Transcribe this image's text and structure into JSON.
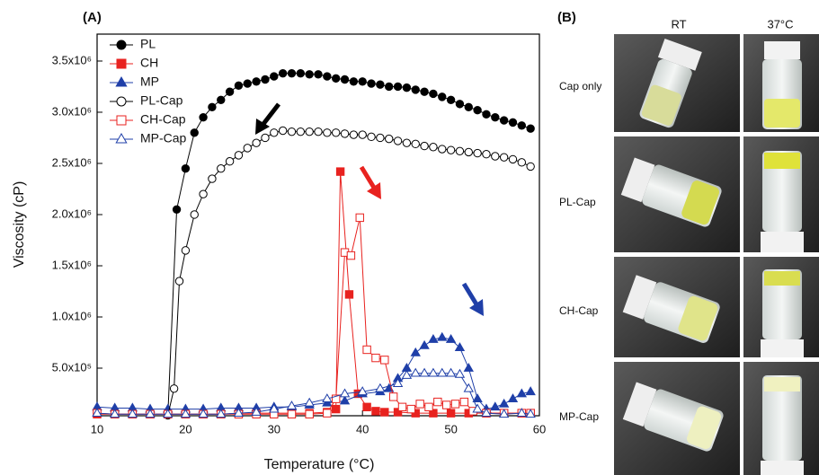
{
  "chart_data": {
    "type": "line",
    "panel_label": "(A)",
    "x_label": "Temperature (°C)",
    "y_label": "Viscosity (cP)",
    "xlim": [
      10,
      60
    ],
    "xticks": [
      10,
      20,
      30,
      40,
      50,
      60
    ],
    "ylim": [
      35000,
      3763000
    ],
    "yticks": [
      {
        "value": 500000,
        "label": "5.0x10⁵"
      },
      {
        "value": 1000000,
        "label": "1.0x10⁶"
      },
      {
        "value": 1500000,
        "label": "1.5x10⁶"
      },
      {
        "value": 2000000,
        "label": "2.0x10⁶"
      },
      {
        "value": 2500000,
        "label": "2.5x10⁶"
      },
      {
        "value": 3000000,
        "label": "3.0x10⁶"
      },
      {
        "value": 3500000,
        "label": "3.5x10⁶"
      }
    ],
    "legend": "upper left",
    "series": [
      {
        "name": "PL",
        "color": "#000000",
        "marker": "circle",
        "filled": true,
        "x": [
          18,
          19,
          20,
          21,
          22,
          23,
          24,
          25,
          26,
          27,
          28,
          29,
          30,
          31,
          32,
          33,
          34,
          35,
          36,
          37,
          38,
          39,
          40,
          41,
          42,
          43,
          44,
          45,
          46,
          47,
          48,
          49,
          50,
          51,
          52,
          53,
          54,
          55,
          56,
          57,
          58,
          59
        ],
        "values": [
          40000,
          2050000,
          2450000,
          2800000,
          2950000,
          3050000,
          3120000,
          3200000,
          3260000,
          3280000,
          3300000,
          3320000,
          3350000,
          3380000,
          3380000,
          3380000,
          3370000,
          3370000,
          3350000,
          3330000,
          3320000,
          3300000,
          3300000,
          3280000,
          3270000,
          3250000,
          3250000,
          3240000,
          3220000,
          3200000,
          3180000,
          3150000,
          3120000,
          3080000,
          3050000,
          3020000,
          2980000,
          2950000,
          2920000,
          2900000,
          2870000,
          2840000
        ]
      },
      {
        "name": "CH",
        "color": "#e8221f",
        "marker": "square",
        "filled": true,
        "x": [
          10,
          12,
          14,
          16,
          18,
          20,
          22,
          24,
          26,
          28,
          30,
          32,
          34,
          36,
          37,
          37.5,
          38.5,
          39.5,
          40.5,
          41.5,
          42.5,
          44,
          46,
          48,
          50,
          52,
          54,
          56,
          58,
          59
        ],
        "values": [
          50000,
          50000,
          50000,
          50000,
          50000,
          50000,
          50000,
          50000,
          60000,
          60000,
          60000,
          60000,
          60000,
          70000,
          100000,
          2420000,
          1220000,
          250000,
          120000,
          80000,
          70000,
          70000,
          60000,
          60000,
          60000,
          60000,
          60000,
          60000,
          60000,
          60000
        ]
      },
      {
        "name": "MP",
        "color": "#1f3fa8",
        "marker": "triangle",
        "filled": true,
        "x": [
          10,
          12,
          14,
          16,
          18,
          20,
          22,
          24,
          26,
          28,
          30,
          32,
          34,
          36,
          38,
          40,
          42,
          43,
          44,
          45,
          46,
          47,
          48,
          49,
          50,
          51,
          52,
          53,
          54,
          55,
          56,
          57,
          58,
          59
        ],
        "values": [
          120000,
          110000,
          110000,
          100000,
          100000,
          100000,
          100000,
          110000,
          110000,
          110000,
          120000,
          120000,
          140000,
          160000,
          180000,
          250000,
          270000,
          300000,
          400000,
          500000,
          650000,
          720000,
          780000,
          800000,
          780000,
          700000,
          500000,
          200000,
          100000,
          120000,
          150000,
          200000,
          250000,
          270000
        ]
      },
      {
        "name": "PL-Cap",
        "color": "#000000",
        "marker": "circle",
        "filled": false,
        "x": [
          18,
          18.7,
          19.3,
          20,
          21,
          22,
          23,
          24,
          25,
          26,
          27,
          28,
          29,
          30,
          31,
          32,
          33,
          34,
          35,
          36,
          37,
          38,
          39,
          40,
          41,
          42,
          43,
          44,
          45,
          46,
          47,
          48,
          49,
          50,
          51,
          52,
          53,
          54,
          55,
          56,
          57,
          58,
          59
        ],
        "values": [
          40000,
          300000,
          1350000,
          1650000,
          2000000,
          2200000,
          2350000,
          2450000,
          2520000,
          2580000,
          2650000,
          2700000,
          2750000,
          2800000,
          2820000,
          2810000,
          2810000,
          2810000,
          2810000,
          2800000,
          2800000,
          2790000,
          2780000,
          2780000,
          2760000,
          2750000,
          2740000,
          2720000,
          2700000,
          2690000,
          2670000,
          2660000,
          2640000,
          2630000,
          2620000,
          2610000,
          2600000,
          2590000,
          2570000,
          2560000,
          2540000,
          2510000,
          2470000
        ]
      },
      {
        "name": "CH-Cap",
        "color": "#e8221f",
        "marker": "square",
        "filled": false,
        "x": [
          10,
          12,
          14,
          16,
          18,
          20,
          22,
          24,
          26,
          28,
          30,
          32,
          34,
          36,
          37,
          38,
          38.7,
          39.7,
          40.5,
          41.5,
          42.5,
          43.5,
          44.5,
          45.5,
          46.5,
          47.5,
          48.5,
          49.5,
          50.5,
          51.5,
          52.5,
          54,
          56,
          58,
          59
        ],
        "values": [
          60000,
          50000,
          50000,
          50000,
          50000,
          50000,
          50000,
          50000,
          50000,
          50000,
          50000,
          50000,
          50000,
          60000,
          200000,
          1630000,
          1600000,
          1970000,
          680000,
          600000,
          580000,
          220000,
          120000,
          100000,
          150000,
          120000,
          170000,
          140000,
          150000,
          170000,
          80000,
          60000,
          60000,
          60000,
          60000
        ]
      },
      {
        "name": "MP-Cap",
        "color": "#1f3fa8",
        "marker": "triangle",
        "filled": false,
        "x": [
          10,
          12,
          14,
          16,
          18,
          20,
          22,
          24,
          26,
          28,
          30,
          32,
          34,
          36,
          38,
          40,
          42,
          44,
          45,
          46,
          47,
          48,
          49,
          50,
          51,
          52,
          53,
          54,
          56,
          58,
          59
        ],
        "values": [
          60000,
          50000,
          50000,
          50000,
          50000,
          50000,
          50000,
          50000,
          60000,
          70000,
          100000,
          130000,
          160000,
          200000,
          250000,
          270000,
          300000,
          350000,
          430000,
          450000,
          450000,
          450000,
          450000,
          450000,
          440000,
          300000,
          100000,
          60000,
          50000,
          60000,
          50000
        ]
      }
    ]
  },
  "panel_b": {
    "label": "(B)",
    "columns": [
      "RT",
      "37°C"
    ],
    "rows": [
      "Cap only",
      "PL-Cap",
      "CH-Cap",
      "MP-Cap"
    ]
  }
}
